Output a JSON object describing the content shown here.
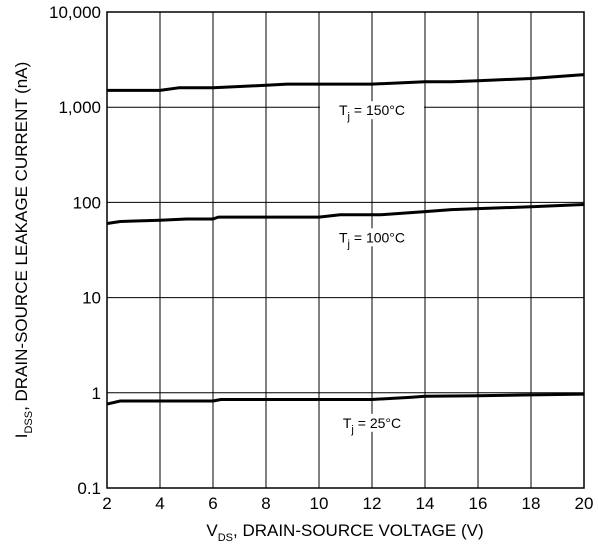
{
  "chart_data": {
    "type": "line",
    "xlabel": {
      "main": "V",
      "sub": "DS",
      "rest": ", DRAIN-SOURCE VOLTAGE (V)"
    },
    "ylabel": {
      "main": "I",
      "sub": "DSS",
      "rest": ", DRAIN-SOURCE LEAKAGE CURRENT (nA)"
    },
    "xlim": [
      2,
      20
    ],
    "ylim": [
      0.1,
      10000
    ],
    "yscale": "log",
    "grid": true,
    "x_ticks": [
      "2",
      "4",
      "6",
      "8",
      "10",
      "12",
      "14",
      "16",
      "18",
      "20"
    ],
    "y_ticks": [
      "0.1",
      "1",
      "10",
      "100",
      "1,000",
      "10,000"
    ],
    "series": [
      {
        "label": {
          "main": "T",
          "sub": "j",
          "rest": " = 150°C"
        },
        "x": [
          2,
          4,
          4.7,
          6,
          7,
          8,
          8.8,
          10,
          12,
          14,
          15,
          16,
          18,
          20
        ],
        "y": [
          1500,
          1500,
          1600,
          1600,
          1650,
          1700,
          1750,
          1750,
          1750,
          1850,
          1850,
          1900,
          2000,
          2200
        ]
      },
      {
        "label": {
          "main": "T",
          "sub": "j",
          "rest": " = 100°C"
        },
        "x": [
          2,
          2.5,
          4,
          5,
          6,
          6.2,
          8,
          10,
          10.8,
          12.3,
          14,
          15,
          16,
          18,
          20
        ],
        "y": [
          60,
          63,
          65,
          67,
          67,
          70,
          70,
          70,
          74,
          74,
          80,
          84,
          86,
          90,
          95
        ]
      },
      {
        "label": {
          "main": "T",
          "sub": "j",
          "rest": " = 25°C"
        },
        "x": [
          2,
          2.5,
          6,
          6.3,
          8,
          10,
          12,
          13.5,
          14,
          16,
          18,
          20
        ],
        "y": [
          0.76,
          0.82,
          0.82,
          0.85,
          0.85,
          0.85,
          0.85,
          0.9,
          0.92,
          0.93,
          0.95,
          0.97
        ]
      }
    ]
  }
}
